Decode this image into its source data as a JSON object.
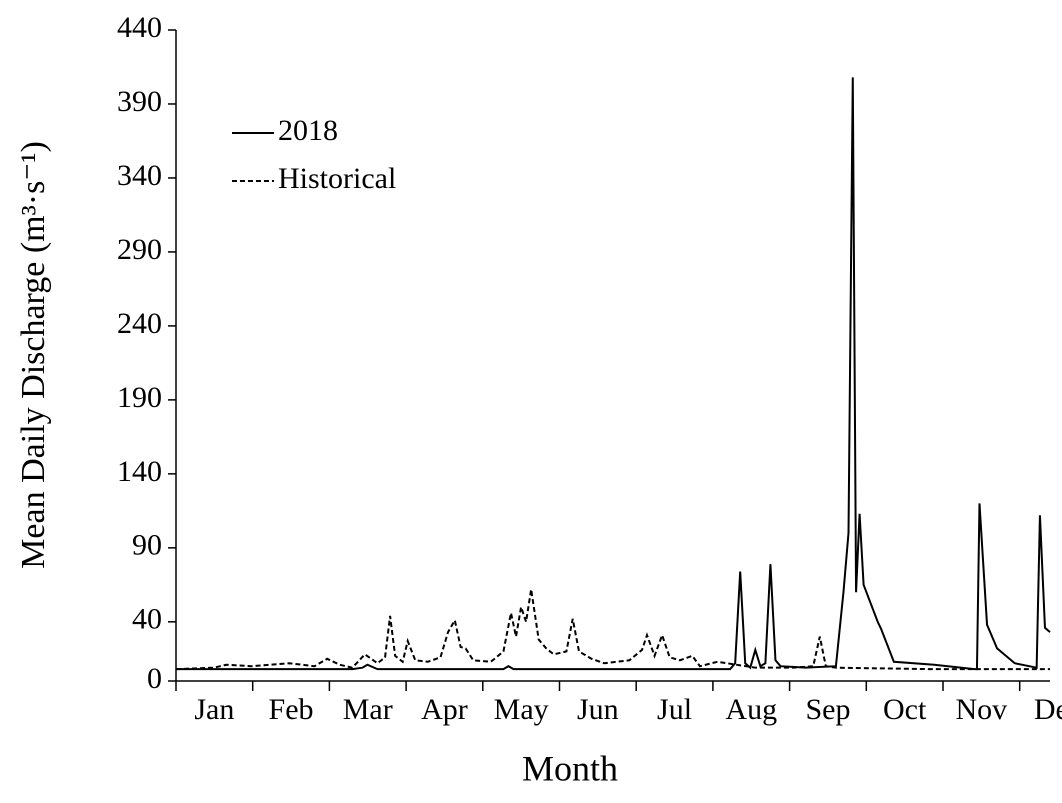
{
  "chart_data": {
    "type": "line",
    "x_label": "Month",
    "y_label": "Mean Daily Discharge (m³·s⁻¹)",
    "categories": [
      "Jan",
      "Feb",
      "Mar",
      "Apr",
      "May",
      "Jun",
      "Jul",
      "Aug",
      "Sep",
      "Oct",
      "Nov",
      "Dec"
    ],
    "xlim": [
      0,
      347
    ],
    "ylim": [
      0,
      440
    ],
    "yticks": [
      0,
      40,
      90,
      140,
      190,
      240,
      290,
      340,
      390,
      440
    ],
    "legend": "upper left",
    "series": [
      {
        "name": "2018",
        "color": "#000000",
        "dash": "solid",
        "x": [
          0,
          70,
          74,
          76,
          80,
          130,
          132,
          134,
          220,
          222,
          224,
          226,
          228,
          230,
          232,
          234,
          236,
          238,
          240,
          250,
          262,
          265,
          267,
          268.7,
          270,
          271.4,
          273,
          278.6,
          280,
          285,
          301,
          317,
          318,
          319,
          322,
          326,
          333,
          341.7,
          343,
          345,
          347
        ],
        "values": [
          8,
          8,
          9,
          11,
          8,
          8,
          10,
          8,
          8,
          12,
          74,
          12,
          9,
          21,
          10,
          12,
          79,
          14,
          10,
          9,
          10,
          60,
          100,
          408,
          60,
          113,
          65,
          40,
          35,
          13,
          11,
          8,
          8,
          120,
          38,
          22,
          12,
          9,
          112,
          36,
          33
        ]
      },
      {
        "name": "Historical",
        "color": "#000000",
        "dash": "dashed",
        "x": [
          0,
          15,
          20,
          30,
          45,
          55,
          60,
          65,
          70,
          75,
          80,
          83,
          85,
          87,
          90,
          92,
          95,
          100,
          105,
          108,
          110.7,
          113,
          115,
          118,
          125,
          130,
          133,
          135,
          137,
          139,
          141,
          144,
          147,
          150,
          155,
          157.5,
          160,
          165,
          170,
          180,
          185,
          187,
          190,
          193,
          196,
          200,
          205,
          208,
          215,
          230,
          245,
          253,
          255.6,
          258,
          262,
          300,
          347
        ],
        "values": [
          8,
          9,
          11,
          10,
          12,
          10,
          15,
          11,
          9,
          18,
          12,
          16,
          44,
          17,
          13,
          27,
          14,
          13,
          16,
          33,
          41,
          23,
          22,
          14,
          13,
          20,
          46,
          30,
          50,
          40,
          62,
          28,
          22,
          18,
          20,
          42,
          20,
          15,
          12,
          14,
          21,
          31,
          17,
          31,
          16,
          14,
          17,
          10,
          13,
          9,
          9,
          10,
          30,
          10,
          9,
          8,
          8
        ]
      }
    ]
  }
}
